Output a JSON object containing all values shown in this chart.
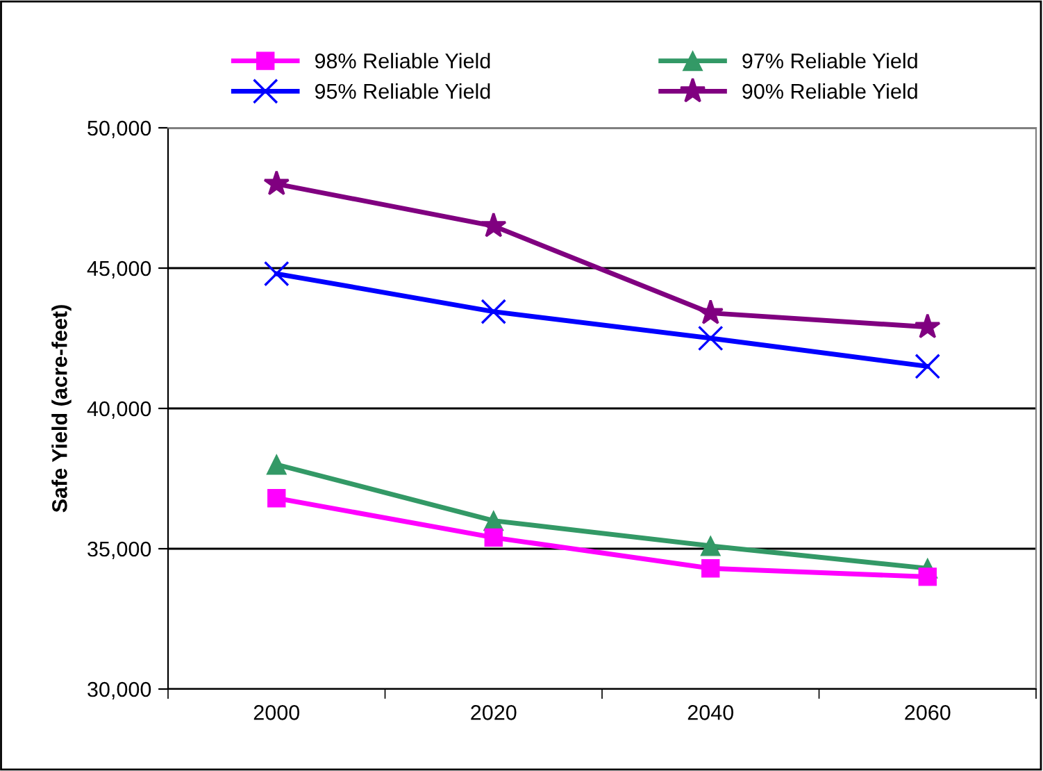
{
  "chart_data": {
    "type": "line",
    "ylabel": "Safe Yield (acre-feet)",
    "categories": [
      "2000",
      "2020",
      "2040",
      "2060"
    ],
    "ylim": [
      30000,
      50000
    ],
    "yticks": [
      {
        "value": 30000,
        "label": "30,000"
      },
      {
        "value": 35000,
        "label": "35,000"
      },
      {
        "value": 40000,
        "label": "40,000"
      },
      {
        "value": 45000,
        "label": "45,000"
      },
      {
        "value": 50000,
        "label": "50,000"
      }
    ],
    "grid": "y",
    "legend": "top",
    "line_style": "solid",
    "series": [
      {
        "name": "98% Reliable Yield",
        "color": "#ff00ff",
        "marker": "square",
        "values": [
          36800,
          35400,
          34300,
          34000
        ]
      },
      {
        "name": "97% Reliable Yield",
        "color": "#339966",
        "marker": "triangle",
        "values": [
          38000,
          36000,
          35100,
          34300
        ]
      },
      {
        "name": "95% Reliable Yield",
        "color": "#0000ff",
        "marker": "cross",
        "values": [
          44800,
          43450,
          42500,
          41500
        ]
      },
      {
        "name": "90% Reliable Yield",
        "color": "#800080",
        "marker": "star",
        "values": [
          48000,
          46500,
          43400,
          42900
        ]
      }
    ]
  }
}
